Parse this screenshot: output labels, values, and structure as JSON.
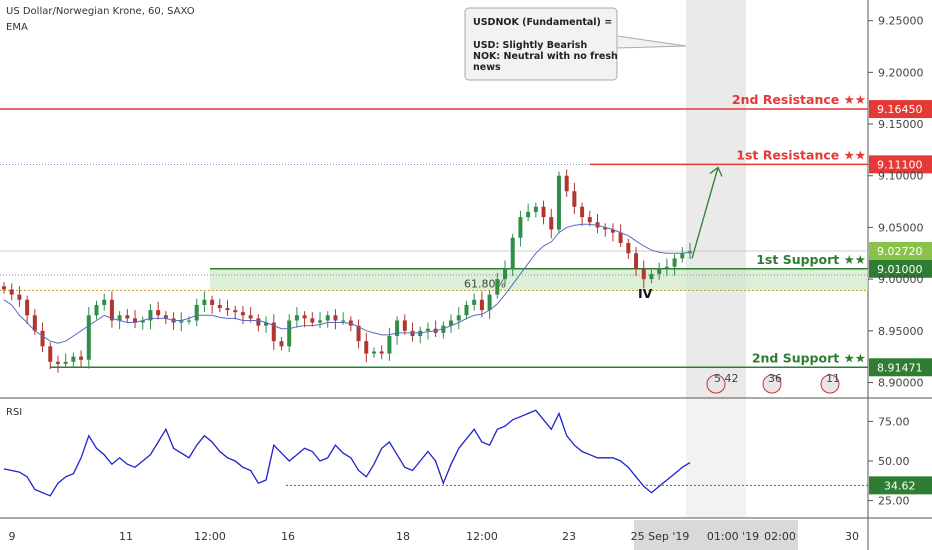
{
  "header": {
    "symbol_line": "US Dollar/Norwegian Krone, 60, SAXO",
    "indicator": "EMA"
  },
  "annotation": {
    "title": "USDNOK (Fundamental) =",
    "lines": [
      "USD: Slightly Bearish",
      "NOK: Neutral with no fresh",
      "news"
    ]
  },
  "colors": {
    "resistance": "#e53935",
    "support": "#2e7d32",
    "ema": "#5c6bc0",
    "rsi": "#1f22cc",
    "candle_up": "#2f8f46",
    "candle_down": "#b0362f",
    "zone": "#cfe8c6",
    "fib": "#c9a227",
    "last_price": "#8bc34a",
    "shade": "#d9d9d9"
  },
  "levels": [
    {
      "label": "2nd Resistance ★★",
      "value": "9.16450",
      "kind": "resistance"
    },
    {
      "label": "1st Resistance ★★",
      "value": "9.11100",
      "kind": "resistance"
    },
    {
      "label": "1st Support ★★",
      "value": "9.01000",
      "kind": "support"
    },
    {
      "label": "2nd Support ★★",
      "value": "8.91471",
      "kind": "support"
    }
  ],
  "last_price": "9.02720",
  "fib_label": "61.80%",
  "wave_label": "IV",
  "event_icons": [
    {
      "name": "event-icon-1",
      "label": "5  42"
    },
    {
      "name": "event-icon-2",
      "label": "36"
    },
    {
      "name": "event-icon-3",
      "label": "11"
    }
  ],
  "rsi": {
    "title": "RSI",
    "level_value": "34.62",
    "ticks": [
      "75.00",
      "50.00",
      "25.00"
    ]
  },
  "chart_data": {
    "type": "line",
    "title": "US Dollar/Norwegian Krone, 60, SAXO",
    "price_axis": {
      "ticks": [
        "9.25000",
        "9.20000",
        "9.15000",
        "9.10000",
        "9.05000",
        "9.00000",
        "8.95000",
        "8.90000"
      ],
      "ylim": [
        8.885,
        9.27
      ]
    },
    "x_ticks": [
      "9",
      "11",
      "12:00",
      "16",
      "18",
      "12:00",
      "23",
      "25 Sep '19",
      "01:00 '19",
      "02:00",
      "30"
    ],
    "series": [
      {
        "name": "Close",
        "values": [
          8.99,
          8.985,
          8.98,
          8.965,
          8.95,
          8.935,
          8.92,
          8.918,
          8.92,
          8.925,
          8.922,
          8.965,
          8.975,
          8.98,
          8.96,
          8.965,
          8.962,
          8.958,
          8.96,
          8.97,
          8.965,
          8.962,
          8.958,
          8.96,
          8.96,
          8.975,
          8.98,
          8.975,
          8.972,
          8.97,
          8.968,
          8.965,
          8.962,
          8.955,
          8.958,
          8.94,
          8.935,
          8.96,
          8.965,
          8.962,
          8.958,
          8.96,
          8.965,
          8.96,
          8.96,
          8.955,
          8.94,
          8.928,
          8.93,
          8.928,
          8.945,
          8.96,
          8.95,
          8.945,
          8.95,
          8.952,
          8.948,
          8.955,
          8.96,
          8.965,
          8.975,
          8.98,
          8.97,
          8.985,
          9.0,
          9.01,
          9.04,
          9.06,
          9.065,
          9.07,
          9.06,
          9.048,
          9.1,
          9.085,
          9.07,
          9.06,
          9.055,
          9.05,
          9.048,
          9.045,
          9.035,
          9.025,
          9.01,
          9.0,
          9.005,
          9.01,
          9.012,
          9.02,
          9.025,
          9.027
        ]
      },
      {
        "name": "EMA",
        "values": [
          8.98,
          8.975,
          8.965,
          8.958,
          8.95,
          8.945,
          8.94,
          8.938,
          8.94,
          8.945,
          8.95,
          8.955,
          8.96,
          8.965,
          8.962,
          8.96,
          8.958,
          8.958,
          8.96,
          8.962,
          8.962,
          8.962,
          8.96,
          8.96,
          8.962,
          8.965,
          8.965,
          8.965,
          8.963,
          8.962,
          8.962,
          8.96,
          8.96,
          8.96,
          8.958,
          8.955,
          8.952,
          8.952,
          8.954,
          8.955,
          8.955,
          8.956,
          8.958,
          8.958,
          8.958,
          8.957,
          8.954,
          8.95,
          8.948,
          8.946,
          8.946,
          8.948,
          8.948,
          8.948,
          8.948,
          8.949,
          8.95,
          8.952,
          8.955,
          8.958,
          8.962,
          8.965,
          8.966,
          8.97,
          8.976,
          8.985,
          8.995,
          9.005,
          9.015,
          9.025,
          9.032,
          9.036,
          9.045,
          9.05,
          9.052,
          9.053,
          9.053,
          9.052,
          9.05,
          9.048,
          9.045,
          9.042,
          9.037,
          9.032,
          9.028,
          9.026,
          9.025,
          9.025,
          9.025,
          9.026
        ]
      },
      {
        "name": "RSI",
        "values": [
          45,
          44,
          43,
          40,
          32,
          30,
          28,
          36,
          40,
          42,
          52,
          66,
          58,
          54,
          48,
          52,
          48,
          46,
          50,
          54,
          62,
          70,
          58,
          55,
          52,
          60,
          66,
          62,
          56,
          52,
          50,
          46,
          44,
          36,
          38,
          60,
          55,
          50,
          54,
          58,
          56,
          50,
          52,
          60,
          55,
          52,
          44,
          40,
          48,
          58,
          62,
          54,
          46,
          44,
          50,
          56,
          50,
          36,
          48,
          58,
          64,
          70,
          62,
          60,
          70,
          72,
          76,
          78,
          80,
          82,
          76,
          70,
          80,
          66,
          60,
          56,
          54,
          52,
          52,
          52,
          50,
          46,
          40,
          34,
          30,
          34,
          38,
          42,
          46,
          49
        ]
      }
    ],
    "levels": [
      9.1645,
      9.111,
      9.01,
      8.91471
    ],
    "xlabel": "",
    "ylabel": ""
  }
}
